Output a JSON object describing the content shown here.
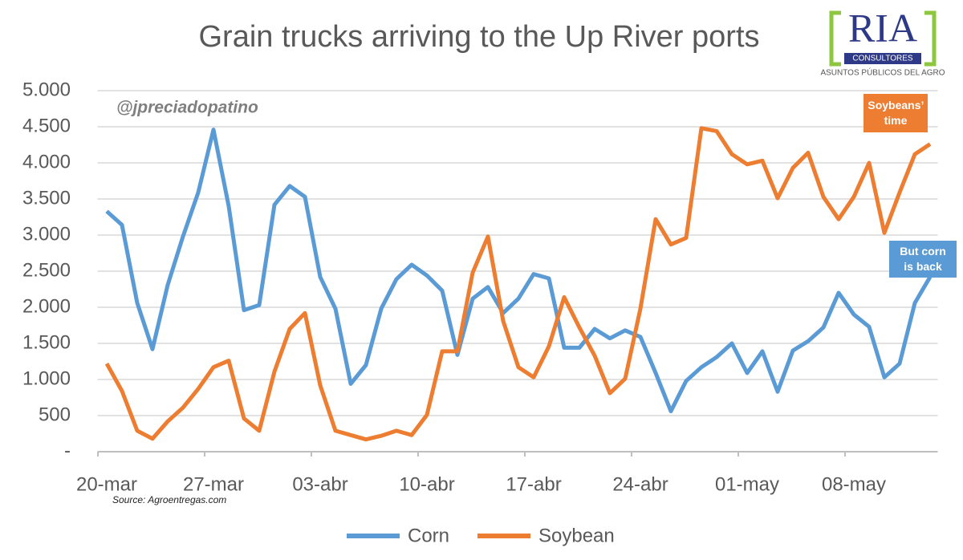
{
  "chart_data": {
    "type": "line",
    "title": "Grain trucks arriving to the Up River ports",
    "annotations": {
      "handle": "@jpreciadopatino",
      "soybean_note": "Soybeans’ time",
      "corn_note": "But corn is back",
      "source": "Source: Agroentregas.com"
    },
    "categories": [
      "20-mar",
      null,
      null,
      null,
      null,
      null,
      null,
      "27-mar",
      null,
      null,
      null,
      null,
      null,
      null,
      "03-abr",
      null,
      null,
      null,
      null,
      null,
      null,
      "10-abr",
      null,
      null,
      null,
      null,
      null,
      null,
      "17-abr",
      null,
      null,
      null,
      null,
      null,
      null,
      "24-abr",
      null,
      null,
      null,
      null,
      null,
      null,
      "01-may",
      null,
      null,
      null,
      null,
      null,
      null,
      "08-may",
      null,
      null,
      null,
      null,
      null
    ],
    "series": [
      {
        "name": "Corn",
        "color": "#5b9bd5",
        "values": [
          3330,
          3140,
          2060,
          1420,
          2310,
          2980,
          3590,
          4460,
          3400,
          1960,
          2030,
          3420,
          3680,
          3530,
          2420,
          1980,
          940,
          1200,
          1980,
          2390,
          2590,
          2440,
          2230,
          1340,
          2120,
          2280,
          1920,
          2120,
          2460,
          2400,
          1440,
          1440,
          1700,
          1570,
          1680,
          1590,
          1090,
          560,
          980,
          1170,
          1310,
          1500,
          1090,
          1390,
          830,
          1400,
          1530,
          1720,
          2200,
          1900,
          1730,
          1030,
          1220,
          2060,
          2420
        ]
      },
      {
        "name": "Soybean",
        "color": "#ed7d31",
        "values": [
          1220,
          840,
          290,
          180,
          420,
          610,
          870,
          1170,
          1260,
          460,
          290,
          1110,
          1700,
          1920,
          920,
          290,
          230,
          170,
          220,
          290,
          230,
          510,
          1390,
          1390,
          2480,
          2980,
          1810,
          1170,
          1030,
          1460,
          2140,
          1720,
          1330,
          810,
          1010,
          1980,
          3220,
          2870,
          2960,
          4480,
          4440,
          4120,
          3980,
          4030,
          3510,
          3930,
          4140,
          3530,
          3220,
          3530,
          4000,
          3030,
          3590,
          4120,
          4260
        ]
      }
    ],
    "ylim": [
      0,
      5000
    ],
    "yticks": [
      {
        "value": 0,
        "label": "-"
      },
      500,
      {
        "value": 1000,
        "label": "1.000"
      },
      {
        "value": 1500,
        "label": "1.500"
      },
      {
        "value": 2000,
        "label": "2.000"
      },
      {
        "value": 2500,
        "label": "2.500"
      },
      {
        "value": 3000,
        "label": "3.000"
      },
      {
        "value": 3500,
        "label": "3.500"
      },
      {
        "value": 4000,
        "label": "4.000"
      },
      {
        "value": 4500,
        "label": "4.500"
      },
      {
        "value": 5000,
        "label": "5.000"
      }
    ],
    "grid": true,
    "legend": "bottom"
  },
  "logo": {
    "name": "RIA",
    "subtitle": "CONSULTORES",
    "tagline": "ASUNTOS PÚBLICOS DEL AGRO"
  }
}
